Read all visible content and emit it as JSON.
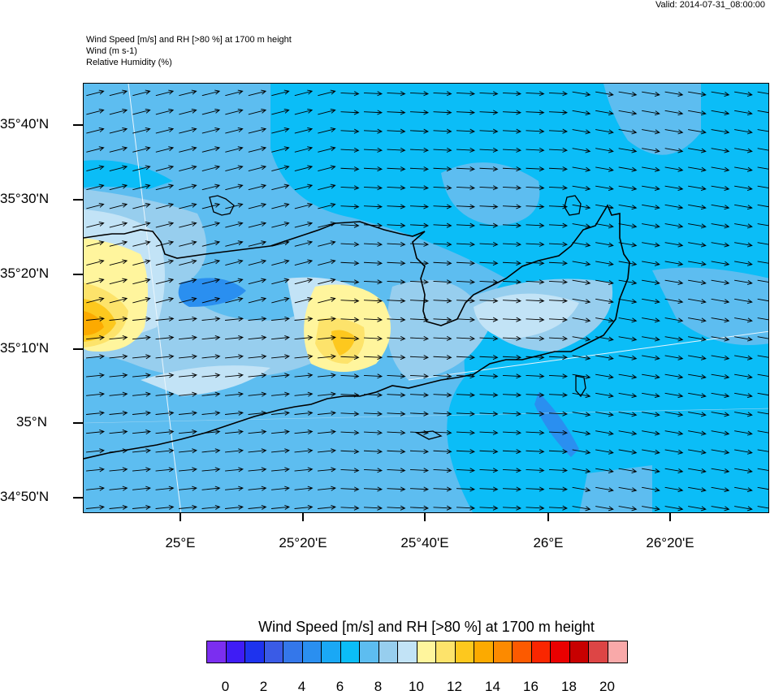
{
  "valid": "Valid: 2014-07-31_08:00:00",
  "header": {
    "line1": "Wind Speed [m/s] and RH [>80 %] at 1700 m height",
    "line2": "Wind   (m s-1)",
    "line3": "Relative Humidity   (%)"
  },
  "axes": {
    "y_labels": [
      "35°40'N",
      "35°30'N",
      "35°20'N",
      "35°10'N",
      "35°N",
      "34°50'N"
    ],
    "x_labels": [
      "25°E",
      "25°20'E",
      "25°40'E",
      "26°E",
      "26°20'E"
    ]
  },
  "legend": {
    "title": "Wind Speed [m/s] and RH [>80 %] at 1700 m height",
    "colors": [
      "#7b2ef0",
      "#3f1cf5",
      "#1e33ee",
      "#3a5be6",
      "#3477ea",
      "#2a8ff0",
      "#1aa8f5",
      "#0bbdf7",
      "#5dbdf0",
      "#97ceee",
      "#c2e3f6",
      "#fff59d",
      "#fde36b",
      "#fdc81e",
      "#fcaa00",
      "#fc8a00",
      "#fc5a00",
      "#fa2600",
      "#ea0000",
      "#c80000",
      "#dd4545",
      "#f9a9a9"
    ],
    "labels": [
      "0",
      "2",
      "4",
      "6",
      "8",
      "10",
      "12",
      "14",
      "16",
      "18",
      "20"
    ]
  }
}
